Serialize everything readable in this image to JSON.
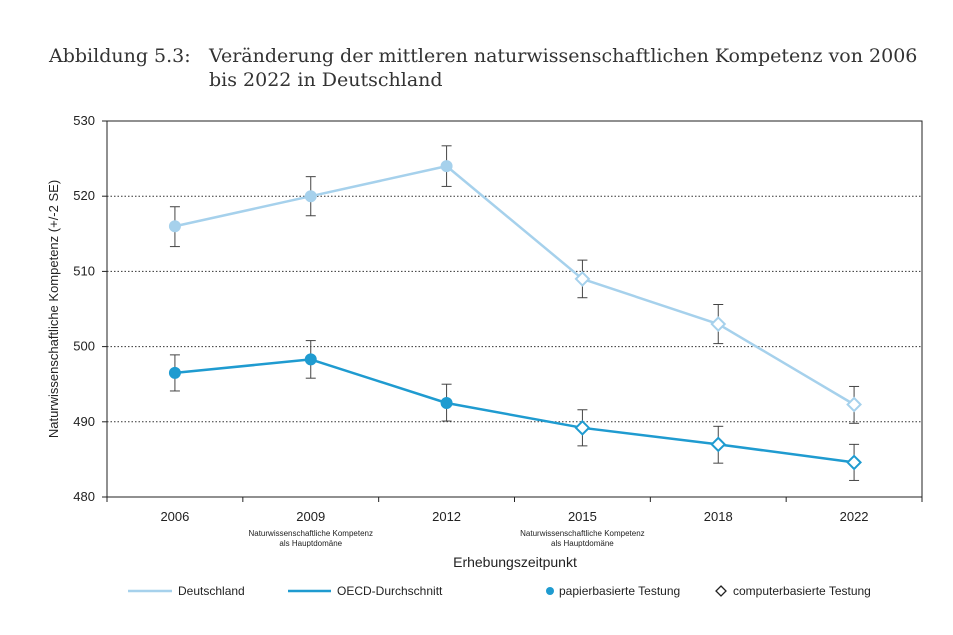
{
  "caption": {
    "number": "Abbildung 5.3:",
    "text": "Veränderung der mittleren naturwissenschaftlichen Kompetenz von 2006 bis 2022 in Deutschland"
  },
  "chart_data": {
    "type": "line",
    "title": "Veränderung der mittleren naturwissenschaftlichen Kompetenz von 2006 bis 2022 in Deutschland",
    "categories": [
      "2006",
      "2009",
      "2012",
      "2015",
      "2018",
      "2022"
    ],
    "category_notes": [
      "",
      "Naturwissenschaftliche Kompetenz als Hauptdomäne",
      "",
      "Naturwissenschaftliche Kompetenz als Hauptdomäne",
      "",
      ""
    ],
    "xlabel": "Erhebungszeitpunkt",
    "ylabel": "Naturwissenschaftliche Kompetenz (+/-2 SE)",
    "ylim": [
      480,
      530
    ],
    "yticks": [
      480,
      490,
      500,
      510,
      520,
      530
    ],
    "grid": "horizontal dotted",
    "legend_position": "bottom",
    "series": [
      {
        "name": "Deutschland",
        "color": "#a6d1ec",
        "values": [
          516,
          520,
          524,
          509,
          503,
          492.3
        ],
        "error_low": [
          513.3,
          517.4,
          521.3,
          506.5,
          500.4,
          489.8
        ],
        "error_high": [
          518.6,
          522.6,
          526.7,
          511.5,
          505.6,
          494.7
        ],
        "marker": [
          "paper",
          "paper",
          "paper",
          "computer",
          "computer",
          "computer"
        ]
      },
      {
        "name": "OECD-Durchschnitt",
        "color": "#1f9bd0",
        "values": [
          496.5,
          498.3,
          492.5,
          489.2,
          487,
          484.6
        ],
        "error_low": [
          494.1,
          495.8,
          490.1,
          486.8,
          484.5,
          482.2
        ],
        "error_high": [
          498.9,
          500.8,
          495,
          491.6,
          489.4,
          487
        ],
        "marker": [
          "paper",
          "paper",
          "paper",
          "computer",
          "computer",
          "computer"
        ]
      }
    ],
    "marker_legend": [
      {
        "name": "papierbasierte Testung",
        "symbol": "filled-circle"
      },
      {
        "name": "computerbasierte Testung",
        "symbol": "open-diamond"
      }
    ]
  }
}
